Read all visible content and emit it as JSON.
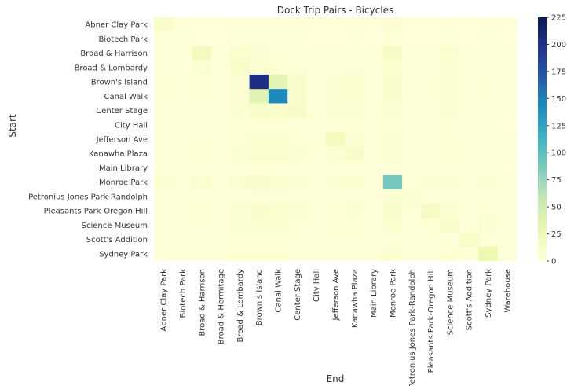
{
  "chart_data": {
    "type": "heatmap",
    "title": "Dock Trip Pairs - Bicycles",
    "xlabel": "End",
    "ylabel": "Start",
    "rows": [
      "Abner Clay Park",
      "Biotech Park",
      "Broad & Harrison",
      "Broad & Lombardy",
      "Brown's Island",
      "Canal Walk",
      "Center Stage",
      "City Hall",
      "Jefferson Ave",
      "Kanawha Plaza",
      "Main Library",
      "Monroe Park",
      "Petronius Jones Park-Randolph",
      "Pleasants Park-Oregon Hill",
      "Science Museum",
      "Scott's Addition",
      "Sydney Park"
    ],
    "columns": [
      "Abner Clay Park",
      "Biotech Park",
      "Broad & Harrison",
      "Broad & Hermitage",
      "Broad & Lombardy",
      "Brown's Island",
      "Canal Walk",
      "Center Stage",
      "City Hall",
      "Jefferson Ave",
      "Kanawha Plaza",
      "Main Library",
      "Monroe Park",
      "Petronius Jones Park-Randolph",
      "Pleasants Park-Oregon Hill",
      "Science Museum",
      "Scott's Addition",
      "Sydney Park",
      "Warehouse"
    ],
    "values": [
      [
        12,
        2,
        1,
        1,
        2,
        2,
        2,
        2,
        1,
        2,
        2,
        1,
        5,
        1,
        1,
        2,
        1,
        2,
        1
      ],
      [
        2,
        1,
        0,
        0,
        1,
        1,
        1,
        1,
        0,
        0,
        1,
        0,
        2,
        0,
        0,
        1,
        0,
        1,
        0
      ],
      [
        3,
        2,
        20,
        2,
        8,
        5,
        4,
        3,
        2,
        3,
        3,
        2,
        15,
        2,
        3,
        8,
        2,
        3,
        1
      ],
      [
        3,
        2,
        5,
        2,
        12,
        6,
        4,
        3,
        2,
        3,
        3,
        2,
        8,
        2,
        3,
        5,
        2,
        3,
        1
      ],
      [
        4,
        2,
        4,
        2,
        6,
        205,
        35,
        10,
        3,
        6,
        8,
        3,
        10,
        2,
        4,
        6,
        2,
        4,
        1
      ],
      [
        4,
        2,
        4,
        2,
        6,
        38,
        145,
        10,
        3,
        6,
        8,
        3,
        10,
        2,
        4,
        6,
        2,
        4,
        1
      ],
      [
        3,
        2,
        3,
        2,
        5,
        12,
        10,
        14,
        3,
        5,
        5,
        2,
        6,
        2,
        3,
        6,
        2,
        3,
        1
      ],
      [
        2,
        1,
        2,
        1,
        3,
        4,
        4,
        3,
        1,
        3,
        3,
        1,
        4,
        1,
        2,
        2,
        1,
        2,
        0
      ],
      [
        2,
        2,
        3,
        2,
        4,
        5,
        5,
        4,
        2,
        18,
        6,
        2,
        6,
        2,
        3,
        4,
        2,
        3,
        1
      ],
      [
        3,
        2,
        4,
        2,
        5,
        8,
        8,
        6,
        2,
        6,
        12,
        3,
        6,
        2,
        3,
        4,
        2,
        3,
        1
      ],
      [
        1,
        1,
        1,
        1,
        2,
        2,
        2,
        2,
        1,
        2,
        2,
        1,
        3,
        1,
        1,
        2,
        1,
        2,
        0
      ],
      [
        6,
        3,
        7,
        3,
        7,
        10,
        8,
        6,
        3,
        5,
        7,
        3,
        90,
        3,
        5,
        5,
        3,
        6,
        1
      ],
      [
        2,
        1,
        2,
        1,
        3,
        3,
        3,
        2,
        1,
        3,
        3,
        1,
        6,
        6,
        3,
        3,
        1,
        2,
        1
      ],
      [
        3,
        2,
        4,
        2,
        5,
        10,
        8,
        6,
        2,
        4,
        6,
        2,
        10,
        3,
        15,
        5,
        2,
        4,
        1
      ],
      [
        3,
        2,
        3,
        2,
        6,
        5,
        5,
        4,
        2,
        4,
        4,
        2,
        8,
        2,
        4,
        10,
        2,
        6,
        1
      ],
      [
        2,
        1,
        2,
        1,
        3,
        3,
        3,
        2,
        1,
        2,
        2,
        1,
        3,
        1,
        2,
        3,
        12,
        3,
        1
      ],
      [
        2,
        2,
        3,
        2,
        4,
        4,
        4,
        3,
        2,
        3,
        3,
        2,
        6,
        2,
        3,
        4,
        2,
        28,
        1
      ]
    ],
    "vmin": 0,
    "vmax": 225,
    "colorbar_ticks": [
      0,
      25,
      50,
      75,
      100,
      125,
      150,
      175,
      200,
      225
    ],
    "colormap": "YlGnBu",
    "grid": false
  }
}
